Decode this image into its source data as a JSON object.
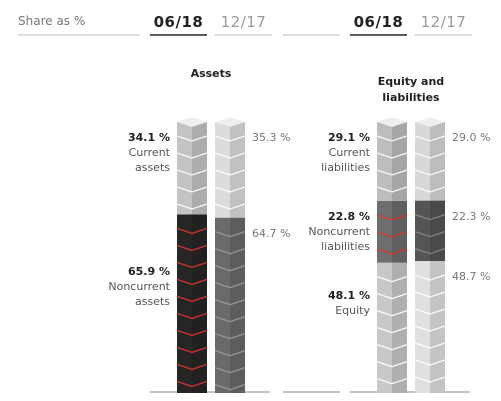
{
  "header": {
    "label": "Share as %"
  },
  "chart_data": [
    {
      "type": "stacked-bar",
      "title": "Assets",
      "categories": [
        "06/18",
        "12/17"
      ],
      "ylim": [
        0,
        100
      ],
      "series": [
        {
          "name": "Current assets",
          "colors": [
            "#c4c4c4",
            "#dcdcdc"
          ],
          "edge_colors": [
            "#ffffff",
            "#ffffff"
          ],
          "values": [
            34.1,
            35.3
          ],
          "value_labels": [
            "34.1 %",
            "35.3 %"
          ]
        },
        {
          "name": "Noncurrent assets",
          "colors": [
            "#262626",
            "#6a6a6a"
          ],
          "edge_colors": [
            "#e5322b",
            "#9a9a9a"
          ],
          "values": [
            65.9,
            64.7
          ],
          "value_labels": [
            "65.9 %",
            "64.7 %"
          ]
        }
      ]
    },
    {
      "type": "stacked-bar",
      "title": "Equity and liabilities",
      "categories": [
        "06/18",
        "12/17"
      ],
      "ylim": [
        0,
        100
      ],
      "series": [
        {
          "name": "Current liabilities",
          "colors": [
            "#bdbdbd",
            "#d8d8d8"
          ],
          "edge_colors": [
            "#ffffff",
            "#ffffff"
          ],
          "values": [
            29.1,
            29.0
          ],
          "value_labels": [
            "29.1 %",
            "29.0 %"
          ]
        },
        {
          "name": "Noncurrent liabilities",
          "colors": [
            "#6e6e6e",
            "#555555"
          ],
          "edge_colors": [
            "#e5322b",
            "#8a8a8a"
          ],
          "values": [
            22.8,
            22.3
          ],
          "value_labels": [
            "22.8 %",
            "22.3 %"
          ]
        },
        {
          "name": "Equity",
          "colors": [
            "#c8c8c8",
            "#e0e0e0"
          ],
          "edge_colors": [
            "#ffffff",
            "#ffffff"
          ],
          "values": [
            48.1,
            48.7
          ],
          "value_labels": [
            "48.1 %",
            "48.7 %"
          ]
        }
      ]
    }
  ]
}
